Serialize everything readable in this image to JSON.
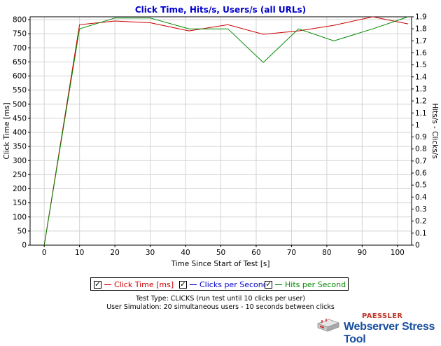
{
  "chart_data": {
    "type": "line",
    "title": "Click Time, Hits/s, Users/s (all URLs)",
    "xlabel": "Time Since Start of Test [s]",
    "ylabel": "Click Time [ms]",
    "y2label": "Hits/s - Clicks/s",
    "xlim": [
      -4,
      104
    ],
    "ylim": [
      0,
      810
    ],
    "y2lim": [
      0,
      1.9
    ],
    "x_ticks": [
      "0",
      "10",
      "20",
      "30",
      "40",
      "50",
      "60",
      "70",
      "80",
      "90",
      "100"
    ],
    "y_ticks": [
      "0",
      "50",
      "100",
      "150",
      "200",
      "250",
      "300",
      "350",
      "400",
      "450",
      "500",
      "550",
      "600",
      "650",
      "700",
      "750",
      "800"
    ],
    "y2_ticks": [
      "0",
      "0.1",
      "0.2",
      "0.3",
      "0.4",
      "0.5",
      "0.6",
      "0.7",
      "0.8",
      "0.9",
      "1",
      "1.1",
      "1.2",
      "1.3",
      "1.4",
      "1.5",
      "1.6",
      "1.7",
      "1.8",
      "1.9"
    ],
    "grid": true,
    "series": [
      {
        "name": "Click Time [ms]",
        "axis": "left",
        "color": "#cc0000",
        "x": [
          0,
          10,
          20,
          30,
          41,
          52,
          62,
          72,
          82,
          93,
          103
        ],
        "y": [
          0,
          782,
          795,
          789,
          760,
          782,
          748,
          760,
          780,
          810,
          785
        ]
      },
      {
        "name": "Clicks per Second",
        "axis": "right",
        "color": "#0000cc",
        "x": [],
        "y": []
      },
      {
        "name": "Hits per Second",
        "axis": "right",
        "color": "#008800",
        "x": [
          0,
          10,
          20,
          30,
          41,
          52,
          62,
          72,
          82,
          93,
          103
        ],
        "y": [
          0,
          1.8,
          1.89,
          1.89,
          1.8,
          1.8,
          1.52,
          1.8,
          1.7,
          1.8,
          1.9
        ]
      }
    ]
  },
  "legend": {
    "items": [
      {
        "label": "Click Time [ms]",
        "color": "#cc0000",
        "check": "✓"
      },
      {
        "label": "Clicks per Second",
        "color": "#0000cc",
        "check": "✓"
      },
      {
        "label": "Hits per Second",
        "color": "#008800",
        "check": "✓"
      }
    ]
  },
  "info": {
    "test_type": "Test Type: CLICKS (run test until 10 clicks per user)",
    "user_simulation": "User Simulation: 20 simultaneous users - 10 seconds between clicks"
  },
  "branding": {
    "company": "PAESSLER",
    "product": "Webserver Stress Tool"
  }
}
